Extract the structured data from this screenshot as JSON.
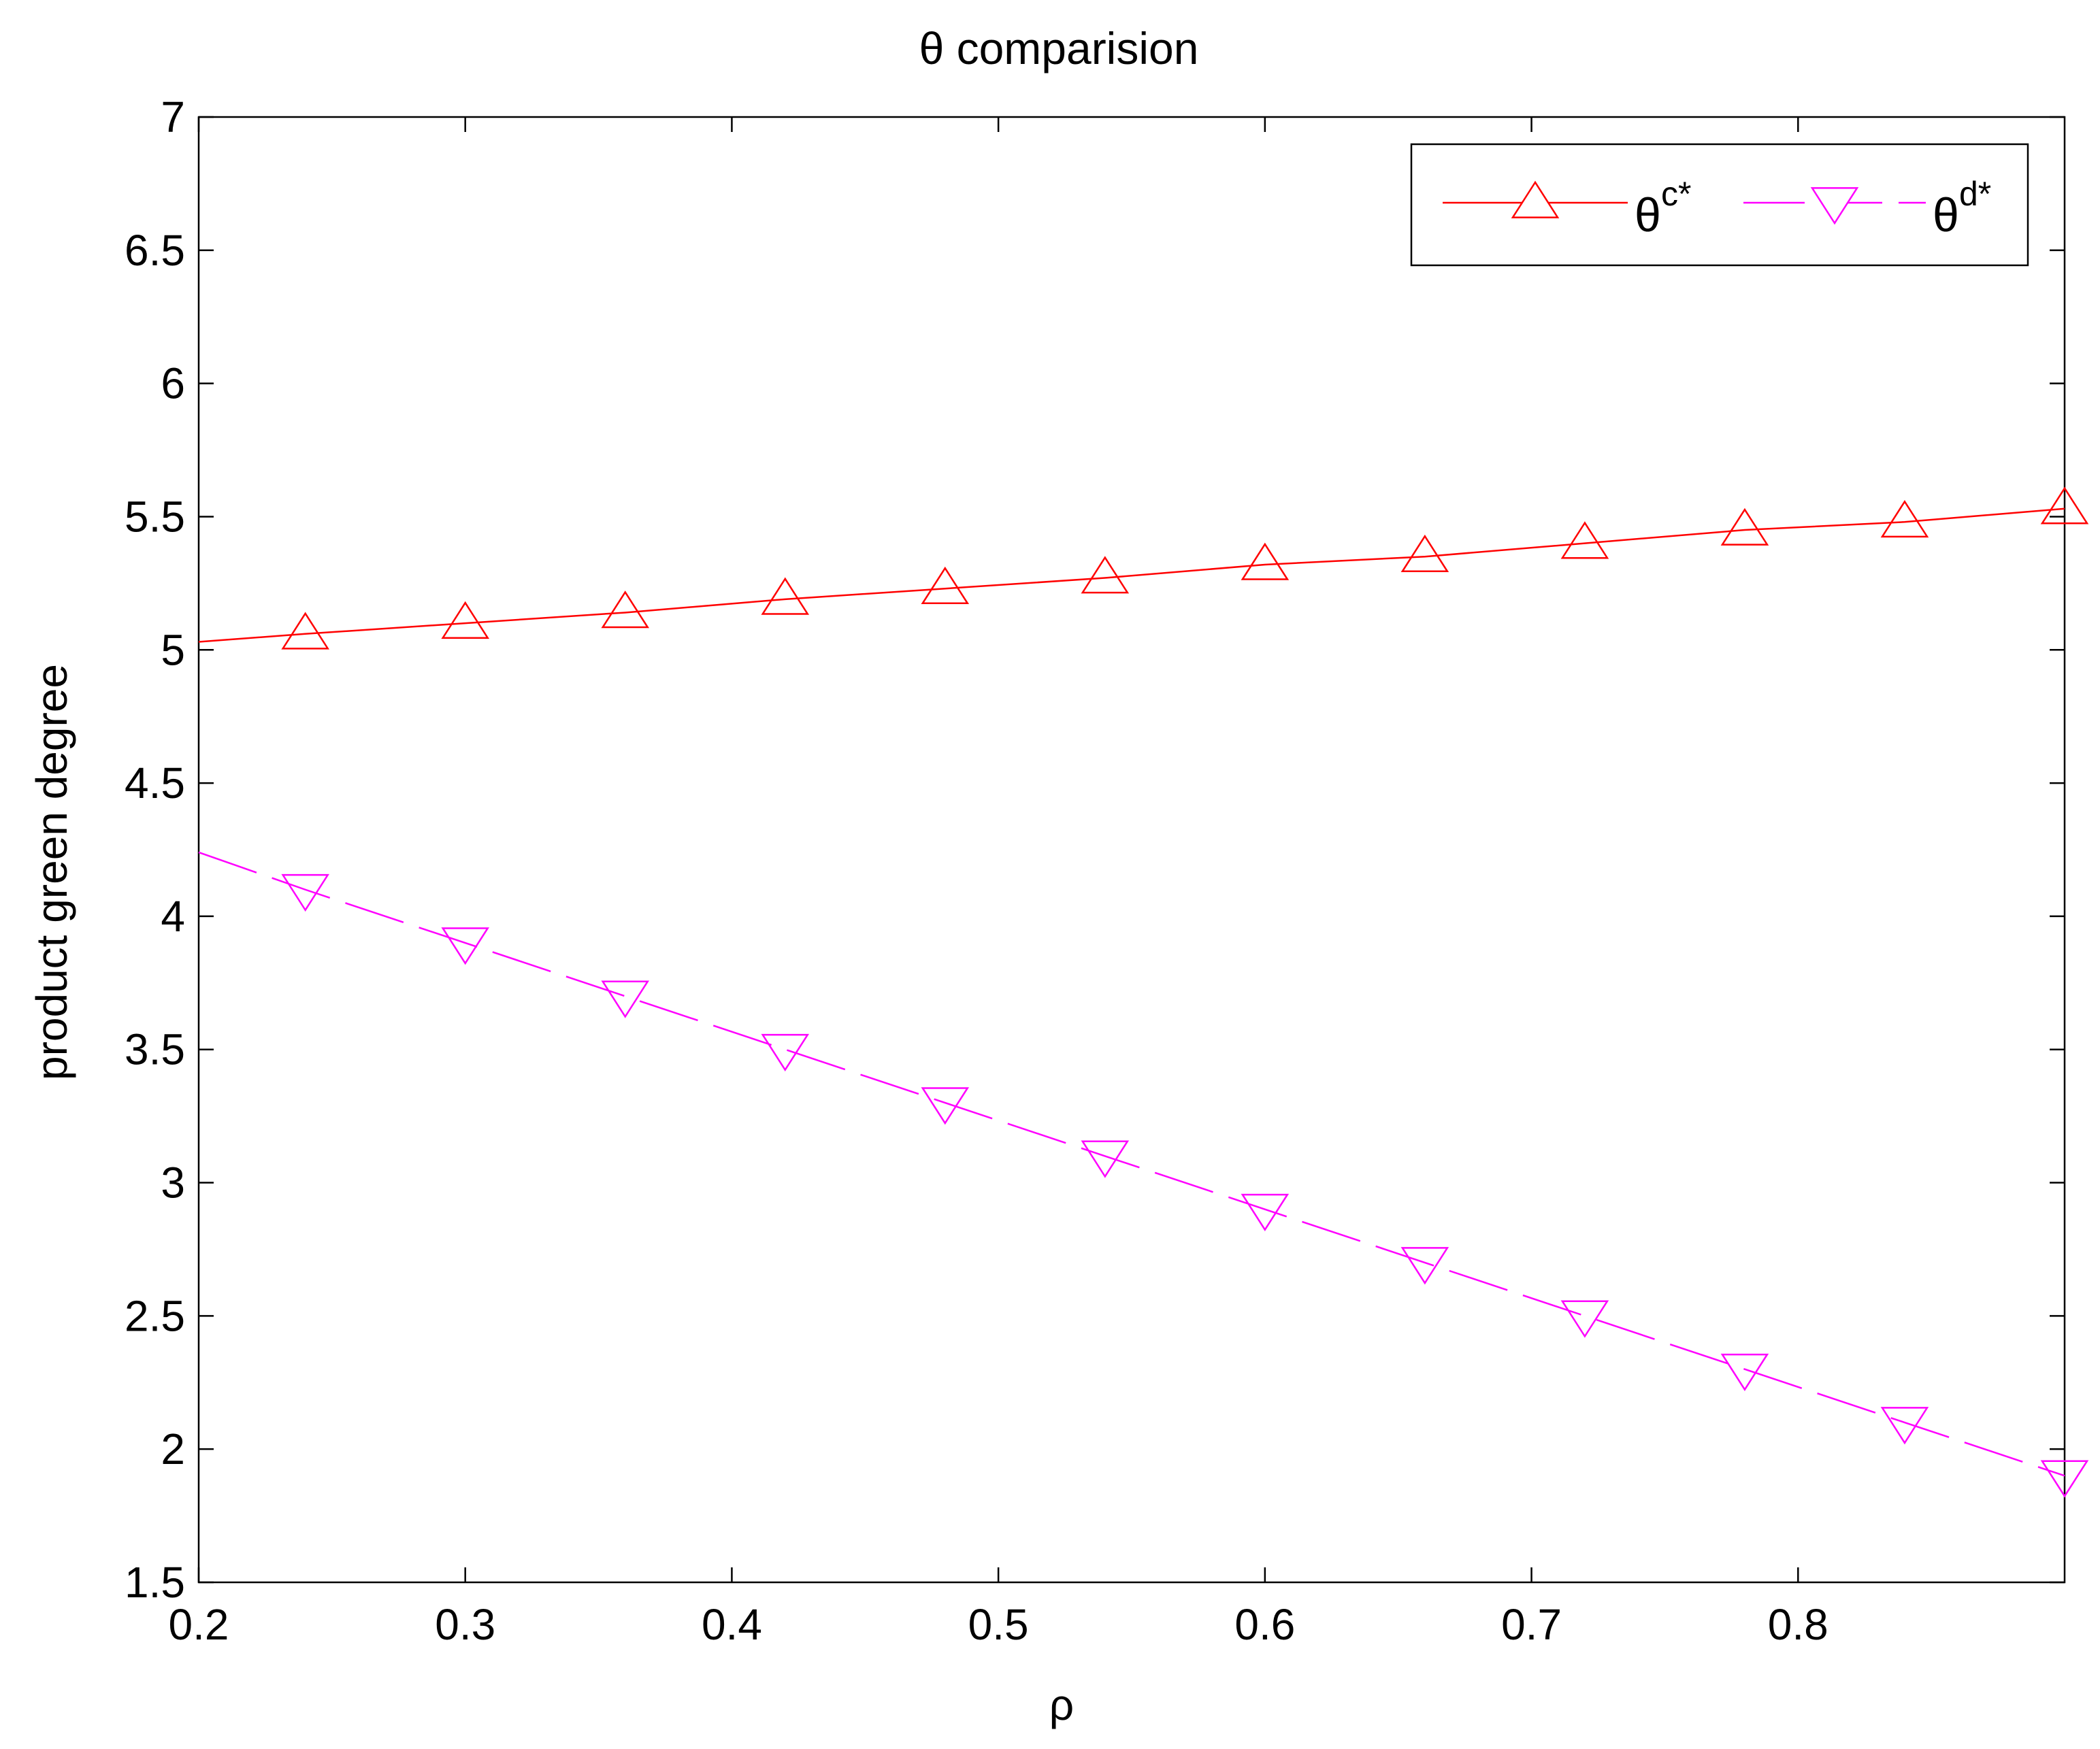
{
  "chart_data": {
    "type": "line",
    "title": "θ comparision",
    "xlabel": "ρ",
    "ylabel": "product green degree",
    "xlim": [
      0.2,
      0.9
    ],
    "ylim": [
      1.5,
      7
    ],
    "xticks": [
      0.2,
      0.3,
      0.4,
      0.5,
      0.6,
      0.7,
      0.8
    ],
    "xtick_labels": [
      "0.2",
      "0.3",
      "0.4",
      "0.5",
      "0.6",
      "0.7",
      "0.8"
    ],
    "yticks": [
      1.5,
      2,
      2.5,
      3,
      3.5,
      4,
      4.5,
      5,
      5.5,
      6,
      6.5,
      7
    ],
    "ytick_labels": [
      "1.5",
      "2",
      "2.5",
      "3",
      "3.5",
      "4",
      "4.5",
      "5",
      "5.5",
      "6",
      "6.5",
      "7"
    ],
    "grid": false,
    "legend_position": "top-right",
    "series": [
      {
        "name": "θc*",
        "name_base": "θ",
        "name_sup": "c*",
        "color": "#ff0000",
        "line_style": "solid",
        "marker": "triangle-up",
        "x": [
          0.2,
          0.24,
          0.3,
          0.36,
          0.42,
          0.48,
          0.54,
          0.6,
          0.66,
          0.72,
          0.78,
          0.84,
          0.9
        ],
        "y": [
          5.03,
          5.06,
          5.1,
          5.14,
          5.19,
          5.23,
          5.27,
          5.32,
          5.35,
          5.4,
          5.45,
          5.48,
          5.53
        ]
      },
      {
        "name": "θd*",
        "name_base": "θ",
        "name_sup": "d*",
        "color": "#ff00ff",
        "line_style": "dashed",
        "marker": "triangle-down",
        "x": [
          0.2,
          0.24,
          0.3,
          0.36,
          0.42,
          0.48,
          0.54,
          0.6,
          0.66,
          0.72,
          0.78,
          0.84,
          0.9
        ],
        "y": [
          4.24,
          4.1,
          3.9,
          3.7,
          3.5,
          3.3,
          3.1,
          2.9,
          2.7,
          2.5,
          2.3,
          2.1,
          1.9
        ]
      }
    ]
  }
}
